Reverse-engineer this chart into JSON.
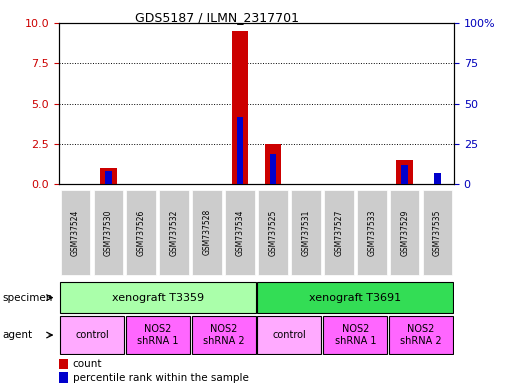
{
  "title": "GDS5187 / ILMN_2317701",
  "samples": [
    "GSM737524",
    "GSM737530",
    "GSM737526",
    "GSM737532",
    "GSM737528",
    "GSM737534",
    "GSM737525",
    "GSM737531",
    "GSM737527",
    "GSM737533",
    "GSM737529",
    "GSM737535"
  ],
  "count_values": [
    0,
    1.0,
    0,
    0,
    0,
    9.5,
    2.5,
    0,
    0,
    0,
    1.5,
    0
  ],
  "percentile_values": [
    0,
    8,
    0,
    0,
    0,
    42,
    19,
    0,
    0,
    0,
    12,
    7
  ],
  "ylim_left": [
    0,
    10
  ],
  "ylim_right": [
    0,
    100
  ],
  "yticks_left": [
    0,
    2.5,
    5,
    7.5,
    10
  ],
  "yticks_right": [
    0,
    25,
    50,
    75,
    100
  ],
  "ytick_right_labels": [
    "0",
    "25",
    "50",
    "75",
    "100%"
  ],
  "specimen_groups": [
    {
      "label": "xenograft T3359",
      "start": 0,
      "end": 5,
      "color": "#AAFFAA"
    },
    {
      "label": "xenograft T3691",
      "start": 6,
      "end": 11,
      "color": "#33DD55"
    }
  ],
  "agent_groups": [
    {
      "label": "control",
      "start": 0,
      "end": 1,
      "color": "#FFAAFF"
    },
    {
      "label": "NOS2\nshRNA 1",
      "start": 2,
      "end": 3,
      "color": "#FF66FF"
    },
    {
      "label": "NOS2\nshRNA 2",
      "start": 4,
      "end": 5,
      "color": "#FF66FF"
    },
    {
      "label": "control",
      "start": 6,
      "end": 7,
      "color": "#FFAAFF"
    },
    {
      "label": "NOS2\nshRNA 1",
      "start": 8,
      "end": 9,
      "color": "#FF66FF"
    },
    {
      "label": "NOS2\nshRNA 2",
      "start": 10,
      "end": 11,
      "color": "#FF66FF"
    }
  ],
  "count_color": "#CC0000",
  "percentile_color": "#0000CC",
  "grid_color": "#000000",
  "background_color": "#FFFFFF",
  "tick_label_color_left": "#CC0000",
  "tick_label_color_right": "#0000BB",
  "sample_box_color": "#CCCCCC",
  "bar_width": 0.5,
  "percentile_bar_width": 0.2
}
